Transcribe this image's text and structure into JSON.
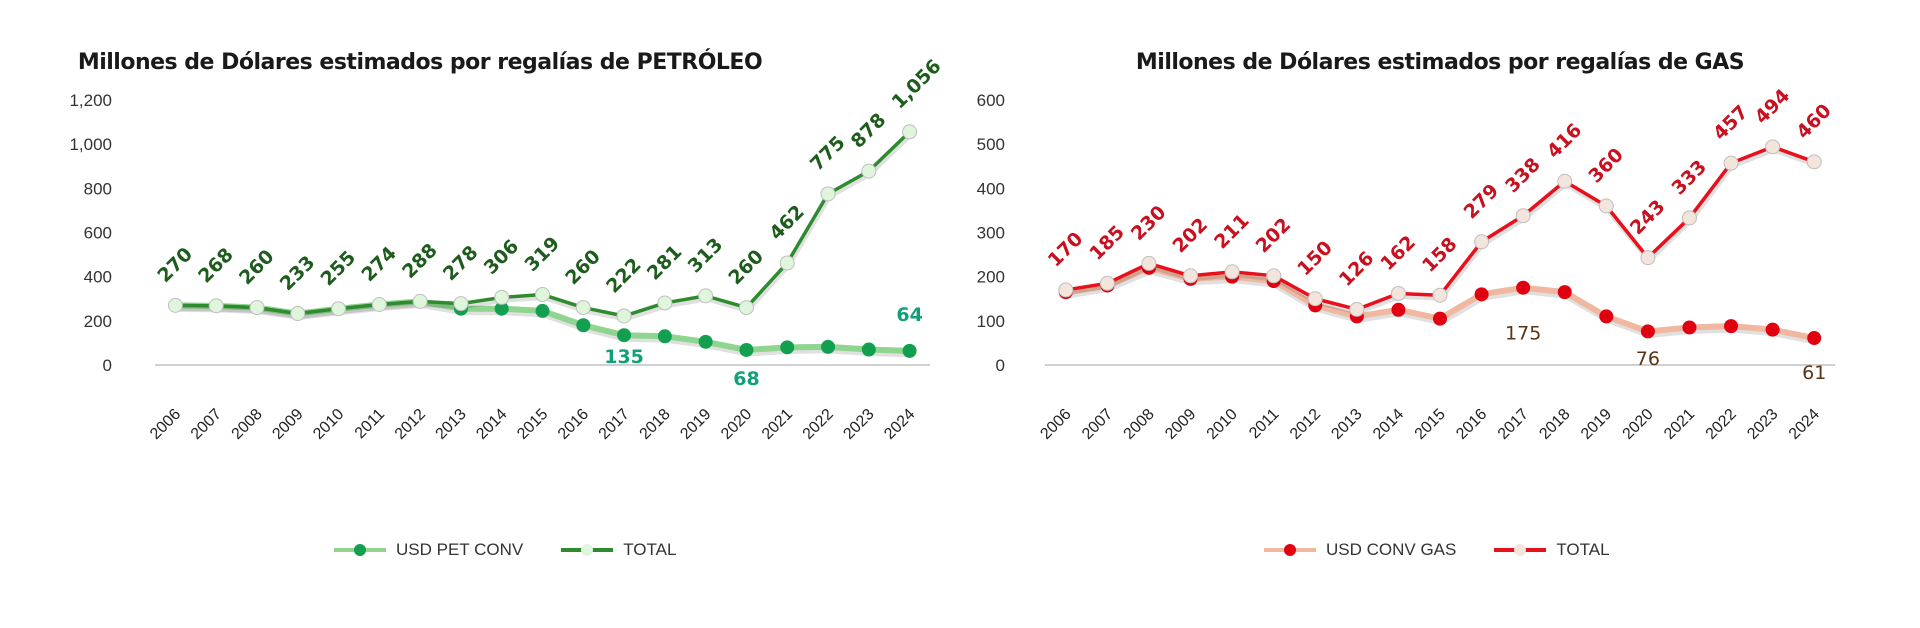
{
  "chart_data": [
    {
      "type": "line",
      "title": "Millones de Dólares estimados por regalías de PETRÓLEO",
      "xlabel": "",
      "ylabel": "",
      "ylim": [
        0,
        1200
      ],
      "yticks": [
        "0",
        "200",
        "400",
        "600",
        "800",
        "1,000",
        "1,200"
      ],
      "ytick_values": [
        0,
        200,
        400,
        600,
        800,
        1000,
        1200
      ],
      "categories": [
        "2006",
        "2007",
        "2008",
        "2009",
        "2010",
        "2011",
        "2012",
        "2013",
        "2014",
        "2015",
        "2016",
        "2017",
        "2018",
        "2019",
        "2020",
        "2021",
        "2022",
        "2023",
        "2024"
      ],
      "grid": false,
      "legend_position": "bottom",
      "series": [
        {
          "name": "USD PET CONV",
          "line_color": "#8fd48f",
          "marker_color": "#12a050",
          "label_color": "#11a07a",
          "values": [
            270,
            268,
            260,
            233,
            255,
            274,
            288,
            255,
            255,
            245,
            180,
            135,
            130,
            105,
            68,
            80,
            82,
            70,
            64
          ],
          "labels": [
            null,
            null,
            null,
            null,
            null,
            null,
            null,
            null,
            null,
            null,
            null,
            "135",
            null,
            null,
            "68",
            null,
            null,
            null,
            "64"
          ]
        },
        {
          "name": "TOTAL",
          "line_color": "#2e8b2e",
          "marker_color": "#dff5dc",
          "label_color": "#1e5c1e",
          "values": [
            270,
            268,
            260,
            233,
            255,
            274,
            288,
            278,
            306,
            319,
            260,
            222,
            281,
            313,
            260,
            462,
            775,
            878,
            1056
          ],
          "labels": [
            "270",
            "268",
            "260",
            "233",
            "255",
            "274",
            "288",
            "278",
            "306",
            "319",
            "260",
            "222",
            "281",
            "313",
            "260",
            "462",
            "775",
            "878",
            "1,056"
          ]
        }
      ]
    },
    {
      "type": "line",
      "title": "Millones de Dólares estimados por regalías de GAS",
      "xlabel": "",
      "ylabel": "",
      "ylim": [
        0,
        600
      ],
      "yticks": [
        "0",
        "100",
        "200",
        "300",
        "400",
        "500",
        "600"
      ],
      "ytick_values": [
        0,
        100,
        200,
        300,
        400,
        500,
        600
      ],
      "categories": [
        "2006",
        "2007",
        "2008",
        "2009",
        "2010",
        "2011",
        "2012",
        "2013",
        "2014",
        "2015",
        "2016",
        "2017",
        "2018",
        "2019",
        "2020",
        "2021",
        "2022",
        "2023",
        "2024"
      ],
      "grid": false,
      "legend_position": "bottom",
      "series": [
        {
          "name": "USD CONV GAS",
          "line_color": "#f0b8a0",
          "marker_color": "#e0000f",
          "label_color": "#5a3416",
          "values": [
            165,
            180,
            220,
            195,
            200,
            190,
            135,
            110,
            125,
            105,
            160,
            175,
            165,
            110,
            76,
            85,
            88,
            80,
            61
          ],
          "labels": [
            null,
            null,
            null,
            null,
            null,
            null,
            null,
            null,
            null,
            null,
            null,
            "175",
            null,
            null,
            "76",
            null,
            null,
            null,
            "61"
          ]
        },
        {
          "name": "TOTAL",
          "line_color": "#e8101a",
          "marker_color": "#f3e4dc",
          "label_color": "#c8101e",
          "values": [
            170,
            185,
            230,
            202,
            211,
            202,
            150,
            126,
            162,
            158,
            279,
            338,
            416,
            360,
            243,
            333,
            457,
            494,
            460
          ],
          "labels": [
            "170",
            "185",
            "230",
            "202",
            "211",
            "202",
            "150",
            "126",
            "162",
            "158",
            "279",
            "338",
            "416",
            "360",
            "243",
            "333",
            "457",
            "494",
            "460"
          ]
        }
      ]
    }
  ]
}
